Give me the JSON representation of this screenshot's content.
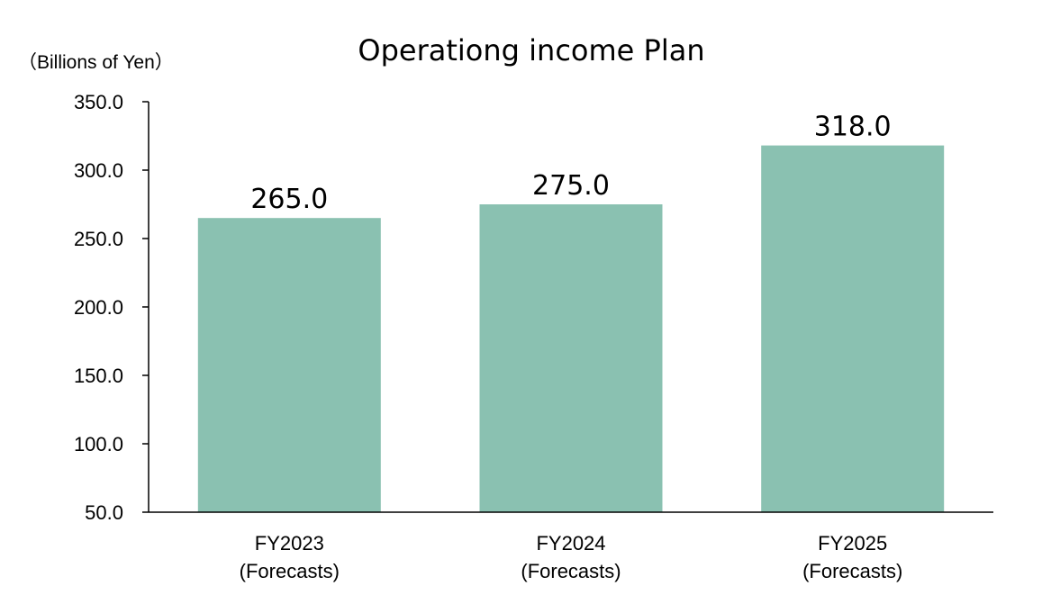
{
  "chart_data": {
    "type": "bar",
    "title": "Operationg income Plan",
    "unit_label": "（Billions of Yen）",
    "categories": [
      [
        "FY2023",
        "(Forecasts)"
      ],
      [
        "FY2024",
        "(Forecasts)"
      ],
      [
        "FY2025",
        "(Forecasts)"
      ]
    ],
    "values": [
      265.0,
      275.0,
      318.0
    ],
    "value_labels": [
      "265.0",
      "275.0",
      "318.0"
    ],
    "ylim": [
      50,
      350
    ],
    "yticks": [
      50,
      100,
      150,
      200,
      250,
      300,
      350
    ],
    "ytick_labels": [
      "50.0",
      "100.0",
      "150.0",
      "200.0",
      "250.0",
      "300.0",
      "350.0"
    ],
    "xlabel": "",
    "ylabel": "",
    "grid": false,
    "legend": "none",
    "bar_color": "#8ac1b1"
  }
}
